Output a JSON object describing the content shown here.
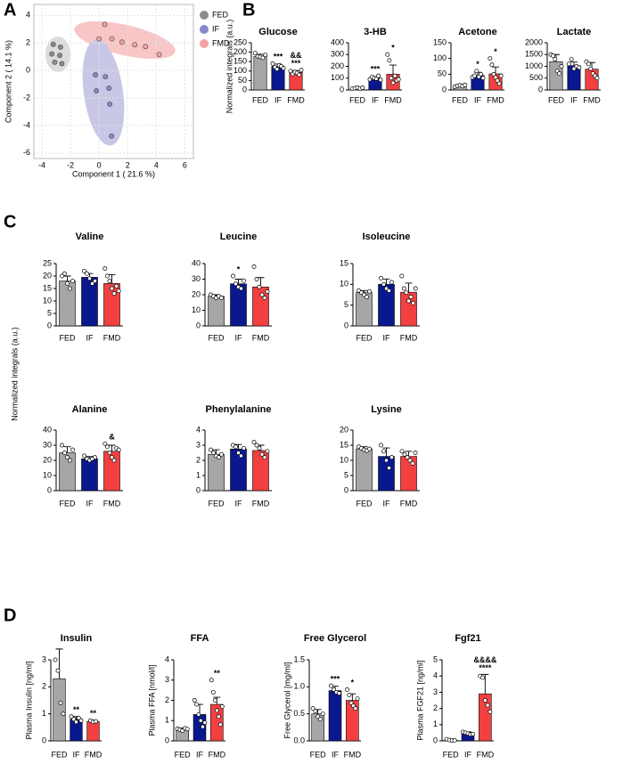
{
  "panel_labels": [
    "A",
    "B",
    "C",
    "D"
  ],
  "shared_labels": {
    "panel_c_ylabel": "Normalized integrals (a.u.)"
  },
  "chart_data": [
    {
      "type": "scatter",
      "xlabel": "Component 1 ( 21.6 %)",
      "ylabel": "Component 2 ( 14.1 %)",
      "xlim": [
        -4.56,
        6.6
      ],
      "ylim": [
        -6.4,
        4.8
      ],
      "xticks": [
        -4,
        -2,
        0,
        2,
        4,
        6
      ],
      "yticks": [
        -6,
        -4,
        -2,
        0,
        2,
        4
      ],
      "grid": true,
      "series": [
        {
          "name": "FED",
          "color": "#8c8c8c",
          "x": [
            -3.2,
            -2.7,
            -3.3,
            -2.75,
            -3.1,
            -2.6
          ],
          "y": [
            1.9,
            1.7,
            1.2,
            1.1,
            0.6,
            0.5
          ]
        },
        {
          "name": "IF",
          "color": "#8a88c8",
          "x": [
            -0.25,
            0.44,
            -0.19,
            0.69,
            0.75,
            0.88
          ],
          "y": [
            -0.32,
            -0.45,
            -1.48,
            -1.29,
            -2.45,
            -4.77
          ]
        },
        {
          "name": "FMD",
          "color": "#f4a3a3",
          "x": [
            0.4,
            0.0,
            0.9,
            1.6,
            2.5,
            3.25,
            4.2
          ],
          "y": [
            3.35,
            2.3,
            2.3,
            2.06,
            1.87,
            1.74,
            1.16
          ]
        }
      ]
    },
    {
      "type": "bar",
      "title": "Glucose",
      "ylabel": "Normalized integrals (a.u.)",
      "categories": [
        "FED",
        "IF",
        "FMD"
      ],
      "colors": [
        "#a6a6a6",
        "#0a188f",
        "#f24040"
      ],
      "ylim": [
        0,
        250
      ],
      "yticks": [
        0,
        50,
        100,
        150,
        200,
        250
      ],
      "values": [
        177,
        125,
        93
      ],
      "errors": [
        12,
        12,
        10
      ],
      "points": [
        [
          195,
          178,
          175,
          170,
          185
        ],
        [
          140,
          120,
          110,
          130,
          125,
          115
        ],
        [
          100,
          85,
          95,
          90,
          80,
          105
        ]
      ],
      "stars": [
        null,
        "***",
        "***"
      ],
      "ampersands": [
        null,
        null,
        "&&"
      ]
    },
    {
      "type": "bar",
      "title": "3-HB",
      "categories": [
        "FED",
        "IF",
        "FMD"
      ],
      "colors": [
        "#a6a6a6",
        "#0a188f",
        "#f24040"
      ],
      "ylim": [
        0,
        400
      ],
      "yticks": [
        0,
        100,
        200,
        300,
        400
      ],
      "values": [
        15,
        100,
        133
      ],
      "errors": [
        5,
        12,
        78
      ],
      "points": [
        [
          10,
          15,
          20,
          12,
          18
        ],
        [
          90,
          110,
          100,
          95,
          120,
          85
        ],
        [
          300,
          250,
          100,
          60,
          120,
          80,
          90
        ]
      ],
      "stars": [
        null,
        "***",
        "*"
      ]
    },
    {
      "type": "bar",
      "title": "Acetone",
      "categories": [
        "FED",
        "IF",
        "FMD"
      ],
      "colors": [
        "#a6a6a6",
        "#0a188f",
        "#f24040"
      ],
      "ylim": [
        0,
        150
      ],
      "yticks": [
        0,
        50,
        100,
        150
      ],
      "values": [
        13,
        46,
        51
      ],
      "errors": [
        3,
        10,
        22
      ],
      "points": [
        [
          10,
          13,
          15,
          12,
          16
        ],
        [
          40,
          45,
          60,
          42,
          50,
          38
        ],
        [
          100,
          80,
          50,
          40,
          30,
          20,
          45
        ]
      ],
      "stars": [
        null,
        "*",
        "*"
      ]
    },
    {
      "type": "bar",
      "title": "Lactate",
      "categories": [
        "FED",
        "IF",
        "FMD"
      ],
      "colors": [
        "#a6a6a6",
        "#0a188f",
        "#f24040"
      ],
      "ylim": [
        0,
        2000
      ],
      "yticks": [
        0,
        500,
        1000,
        1500,
        2000
      ],
      "values": [
        1200,
        1030,
        880
      ],
      "errors": [
        300,
        150,
        280
      ],
      "points": [
        [
          1500,
          1450,
          1300,
          800,
          700,
          1000
        ],
        [
          1100,
          1300,
          900,
          1000,
          950
        ],
        [
          1200,
          1100,
          900,
          700,
          600,
          500
        ]
      ]
    },
    {
      "type": "bar",
      "title": "Valine",
      "categories": [
        "FED",
        "IF",
        "FMD"
      ],
      "colors": [
        "#a6a6a6",
        "#0a188f",
        "#f24040"
      ],
      "ylim": [
        0,
        25
      ],
      "yticks": [
        0,
        5,
        10,
        15,
        20,
        25
      ],
      "values": [
        18,
        19.5,
        17
      ],
      "errors": [
        2,
        1.5,
        3.5
      ],
      "points": [
        [
          20,
          21,
          17,
          15,
          18
        ],
        [
          22,
          21,
          19,
          17,
          18
        ],
        [
          23,
          20,
          18,
          15,
          13,
          16,
          14
        ]
      ]
    },
    {
      "type": "bar",
      "title": "Leucine",
      "categories": [
        "FED",
        "IF",
        "FMD"
      ],
      "colors": [
        "#a6a6a6",
        "#0a188f",
        "#f24040"
      ],
      "ylim": [
        0,
        40
      ],
      "yticks": [
        0,
        10,
        20,
        30,
        40
      ],
      "values": [
        19,
        27,
        25
      ],
      "errors": [
        1,
        3,
        6
      ],
      "points": [
        [
          20,
          19,
          18,
          19,
          18
        ],
        [
          32,
          27,
          25,
          24,
          29
        ],
        [
          38,
          30,
          25,
          20,
          18,
          22
        ]
      ],
      "stars": [
        null,
        "*",
        null
      ]
    },
    {
      "type": "bar",
      "title": "Isoleucine",
      "categories": [
        "FED",
        "IF",
        "FMD"
      ],
      "colors": [
        "#a6a6a6",
        "#0a188f",
        "#f24040"
      ],
      "ylim": [
        0,
        15
      ],
      "yticks": [
        0,
        5,
        10,
        15
      ],
      "values": [
        8,
        10,
        8.1
      ],
      "errors": [
        0.5,
        1.3,
        2.2
      ],
      "points": [
        [
          8.5,
          8,
          7.5,
          7,
          8.3
        ],
        [
          11.5,
          10,
          9,
          8.5,
          10.5
        ],
        [
          12,
          9,
          8,
          6,
          7,
          5.5,
          9
        ]
      ]
    },
    {
      "type": "bar",
      "title": "Alanine",
      "categories": [
        "FED",
        "IF",
        "FMD"
      ],
      "colors": [
        "#a6a6a6",
        "#0a188f",
        "#f24040"
      ],
      "ylim": [
        0,
        40
      ],
      "yticks": [
        0,
        10,
        20,
        30,
        40
      ],
      "values": [
        25,
        21,
        26
      ],
      "errors": [
        4,
        1.5,
        4
      ],
      "points": [
        [
          30,
          25,
          22,
          20,
          27
        ],
        [
          23,
          21,
          20,
          21,
          22
        ],
        [
          31,
          29,
          25,
          22,
          20,
          28,
          27
        ]
      ],
      "ampersands": [
        null,
        null,
        "&"
      ]
    },
    {
      "type": "bar",
      "title": "Phenylalanine",
      "categories": [
        "FED",
        "IF",
        "FMD"
      ],
      "colors": [
        "#a6a6a6",
        "#0a188f",
        "#f24040"
      ],
      "ylim": [
        0,
        4
      ],
      "yticks": [
        0,
        1,
        2,
        3,
        4
      ],
      "values": [
        2.4,
        2.75,
        2.65
      ],
      "errors": [
        0.3,
        0.3,
        0.35
      ],
      "points": [
        [
          2.7,
          2.5,
          2.3,
          2.2,
          2.4
        ],
        [
          3.0,
          2.9,
          2.5,
          2.3,
          2.8
        ],
        [
          3.2,
          3.0,
          2.8,
          2.4,
          2.2,
          2.6
        ]
      ]
    },
    {
      "type": "bar",
      "title": "Lysine",
      "categories": [
        "FED",
        "IF",
        "FMD"
      ],
      "colors": [
        "#a6a6a6",
        "#0a188f",
        "#f24040"
      ],
      "ylim": [
        0,
        20
      ],
      "yticks": [
        0,
        5,
        10,
        15,
        20
      ],
      "values": [
        13.8,
        11.3,
        11.3
      ],
      "errors": [
        0.7,
        2.8,
        1.7
      ],
      "points": [
        [
          14.5,
          14,
          13.5,
          13.2,
          13.8
        ],
        [
          15,
          13,
          10,
          7.5,
          11
        ],
        [
          13,
          12,
          11,
          10,
          9,
          12.5
        ]
      ]
    },
    {
      "type": "bar",
      "title": "Insulin",
      "ylabel": "Plasma Insulin [ng/ml]",
      "categories": [
        "FED",
        "IF",
        "FMD"
      ],
      "colors": [
        "#a6a6a6",
        "#0a188f",
        "#f24040"
      ],
      "ylim": [
        0,
        3
      ],
      "yticks": [
        0,
        1,
        2,
        3
      ],
      "values": [
        2.3,
        0.8,
        0.72
      ],
      "errors": [
        1.1,
        0.1,
        0.05
      ],
      "points": [
        [
          3.0,
          2.6,
          1.4,
          1.0
        ],
        [
          0.9,
          0.8,
          0.7,
          0.85,
          0.75
        ],
        [
          0.75,
          0.7,
          0.72
        ]
      ],
      "stars": [
        null,
        "**",
        "**"
      ]
    },
    {
      "type": "bar",
      "title": "FFA",
      "ylabel": "Plasma FFA [nmol/l]",
      "categories": [
        "FED",
        "IF",
        "FMD"
      ],
      "colors": [
        "#a6a6a6",
        "#0a188f",
        "#f24040"
      ],
      "ylim": [
        0,
        4
      ],
      "yticks": [
        0,
        1,
        2,
        3,
        4
      ],
      "values": [
        0.58,
        1.3,
        1.8
      ],
      "errors": [
        0.05,
        0.5,
        0.35
      ],
      "points": [
        [
          0.6,
          0.55,
          0.5,
          0.62,
          0.58
        ],
        [
          2.0,
          1.8,
          1.3,
          1.0,
          0.7,
          0.9
        ],
        [
          3.0,
          2.4,
          2.0,
          1.5,
          1.2,
          0.8,
          1.7
        ]
      ],
      "stars": [
        null,
        null,
        "**"
      ]
    },
    {
      "type": "bar",
      "title": "Free Glycerol",
      "ylabel": "Free Glycerol [mg/ml]",
      "categories": [
        "FED",
        "IF",
        "FMD"
      ],
      "colors": [
        "#a6a6a6",
        "#0a188f",
        "#f24040"
      ],
      "ylim": [
        0,
        1.5
      ],
      "yticks": [
        {
          "value": 0,
          "label": "0.0"
        },
        0.5,
        {
          "value": 1,
          "label": "1.0"
        },
        1.5
      ],
      "values": [
        0.5,
        0.93,
        0.75
      ],
      "errors": [
        0.08,
        0.08,
        0.12
      ],
      "points": [
        [
          0.6,
          0.55,
          0.45,
          0.4,
          0.5
        ],
        [
          1.02,
          0.95,
          0.9,
          0.88
        ],
        [
          0.95,
          0.85,
          0.7,
          0.65,
          0.6,
          0.78
        ]
      ],
      "stars": [
        null,
        "***",
        "*"
      ]
    },
    {
      "type": "bar",
      "title": "Fgf21",
      "ylabel": "Plasma FGF21 [ng/ml]",
      "categories": [
        "FED",
        "IF",
        "FMD"
      ],
      "colors": [
        "#a6a6a6",
        "#0a188f",
        "#f24040"
      ],
      "ylim": [
        0,
        5
      ],
      "yticks": [
        0,
        1,
        2,
        3,
        4,
        5
      ],
      "values": [
        0.05,
        0.45,
        2.9
      ],
      "errors": [
        0.05,
        0.1,
        1.2
      ],
      "points": [
        [
          0.1,
          0.05,
          0.02,
          0.03
        ],
        [
          0.55,
          0.5,
          0.45,
          0.4,
          0.42
        ],
        [
          4.0,
          3.9,
          2.5,
          2.2,
          1.8
        ]
      ],
      "stars": [
        null,
        null,
        "****"
      ],
      "ampersands": [
        null,
        null,
        "&&&&"
      ]
    }
  ]
}
